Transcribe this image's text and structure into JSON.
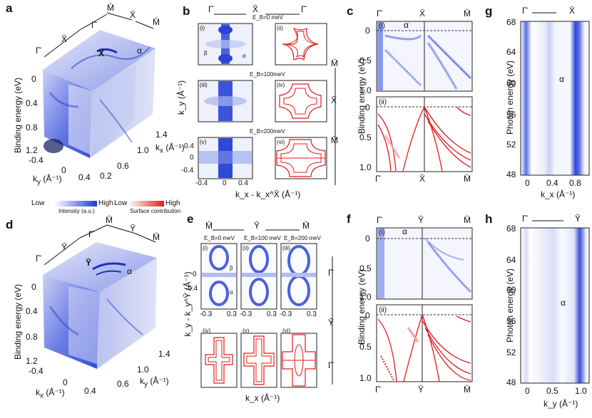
{
  "figure": {
    "panels": {
      "a": {
        "label": "a",
        "ylabel": "Binding energy (eV)",
        "yticks": [
          "0",
          "0.4",
          "0.8",
          "1.2"
        ],
        "ky_label": "k",
        "ky_sub": "y",
        "ky_unit": " (Å⁻¹)",
        "ky_ticks": [
          "-0.4",
          "0",
          "0.4"
        ],
        "kx_label": "k",
        "kx_sub": "x",
        "kx_unit": " (Å⁻¹)",
        "kx_ticks": [
          "1.4",
          "1.0",
          "0.6",
          "0.2"
        ],
        "top_labels": [
          "Γ̄",
          "X̄",
          "Γ̄",
          "M̄",
          "X̄",
          "M̄"
        ],
        "point_label": "X̄",
        "alpha": "α"
      },
      "b": {
        "label": "b",
        "header": [
          "Γ̄",
          "X̄",
          "Γ̄"
        ],
        "energies": [
          "E_B=0 meV",
          "E_B=100meV",
          "E_B=200meV"
        ],
        "sub": [
          "(i)",
          "(ii)",
          "(iii)",
          "(iv)",
          "(v)",
          "(vi)"
        ],
        "beta": "β",
        "alpha": "α",
        "yticks": [
          "0.4",
          "0",
          "-0.4"
        ],
        "xticks": [
          "-0.4",
          "0",
          "0.4"
        ],
        "ylabel": "k_y (Å⁻¹)",
        "xlabel": "k_x - k_x^X̄ (Å⁻¹)",
        "side": [
          "M̄",
          "X̄",
          "M̄"
        ]
      },
      "c": {
        "label": "c",
        "top": [
          "Γ̄",
          "X̄",
          "M̄"
        ],
        "bottom": [
          "Γ̄",
          "X̄",
          "M̄"
        ],
        "sub": [
          "(i)",
          "(ii)"
        ],
        "alpha": "α",
        "ylabel": "Binding energy (eV)",
        "yticks_top": [
          "0",
          "0.5",
          "1.0"
        ],
        "yticks_bot": [
          "0",
          "0.5",
          "1.0"
        ]
      },
      "g": {
        "label": "g",
        "top": [
          "Γ̄",
          "X̄"
        ],
        "ylabel": "Photon energy (eV)",
        "yticks": [
          "68",
          "64",
          "60",
          "56",
          "52",
          "48"
        ],
        "xticks": [
          "0",
          "0.4",
          "0.8"
        ],
        "xlabel": "k_x (Å⁻¹)",
        "alpha": "α"
      },
      "d": {
        "label": "d",
        "ylabel": "Binding energy (eV)",
        "yticks": [
          "0",
          "0.4",
          "0.8",
          "1.2"
        ],
        "kx_ticks": [
          "-0.4",
          "0",
          "0.4"
        ],
        "ky_ticks": [
          "1.4",
          "1.0",
          "0.6"
        ],
        "kx_label": "k",
        "kx_sub": "x",
        "ky_label": "k",
        "ky_sub": "y",
        "unit": " (Å⁻¹)",
        "top_labels": [
          "Γ̄",
          "Ȳ",
          "Γ̄",
          "M̄",
          "Ȳ",
          "M̄"
        ],
        "point_label": "Ȳ",
        "alpha": "α"
      },
      "e": {
        "label": "e",
        "header": [
          "M̄",
          "Ȳ",
          "M̄"
        ],
        "energies": [
          "E_B=0 meV",
          "E_B=100 meV",
          "E_B=200 meV"
        ],
        "sub": [
          "(i)",
          "(ii)",
          "(iii)",
          "(iv)",
          "(v)",
          "(vi)"
        ],
        "beta": "β",
        "alpha": "α",
        "yticks": [
          "0",
          "-0.4"
        ],
        "xticks": [
          "-0.3",
          "0.3",
          "-0.3",
          "0.3",
          "-0.3",
          "0.3"
        ],
        "ylabel": "k_y - k_y^Ȳ (Å⁻¹)",
        "xlabel": "k_x (Å⁻¹)",
        "side": [
          "Γ̄",
          "Ȳ",
          "Γ̄"
        ]
      },
      "f": {
        "label": "f",
        "top": [
          "Γ̄",
          "Ȳ",
          "M̄"
        ],
        "bottom": [
          "Γ̄",
          "Ȳ",
          "M̄"
        ],
        "sub": [
          "(i)",
          "(ii)"
        ],
        "alpha": "α",
        "ylabel": "Binding energy (eV)",
        "yticks_top": [
          "0",
          "0.5",
          "1.0"
        ],
        "yticks_bot": [
          "0",
          "0.5",
          "1.0"
        ]
      },
      "h": {
        "label": "h",
        "top": [
          "Γ̄",
          "Ȳ"
        ],
        "ylabel": "Photon energy (eV)",
        "yticks": [
          "68",
          "64",
          "60",
          "56",
          "52",
          "48"
        ],
        "xticks": [
          "0",
          "0.5",
          "1.0"
        ],
        "xlabel": "k_y (Å⁻¹)",
        "alpha": "α"
      }
    },
    "legend": {
      "intensity_low": "Low",
      "intensity_high": "High",
      "intensity_caption": "Intensity (a.u.)",
      "surface_low": "Low",
      "surface_high": "High",
      "surface_caption": "Surface contribution"
    },
    "colors": {
      "arpes": "#2b45d8",
      "surface": "#e3201b"
    }
  }
}
